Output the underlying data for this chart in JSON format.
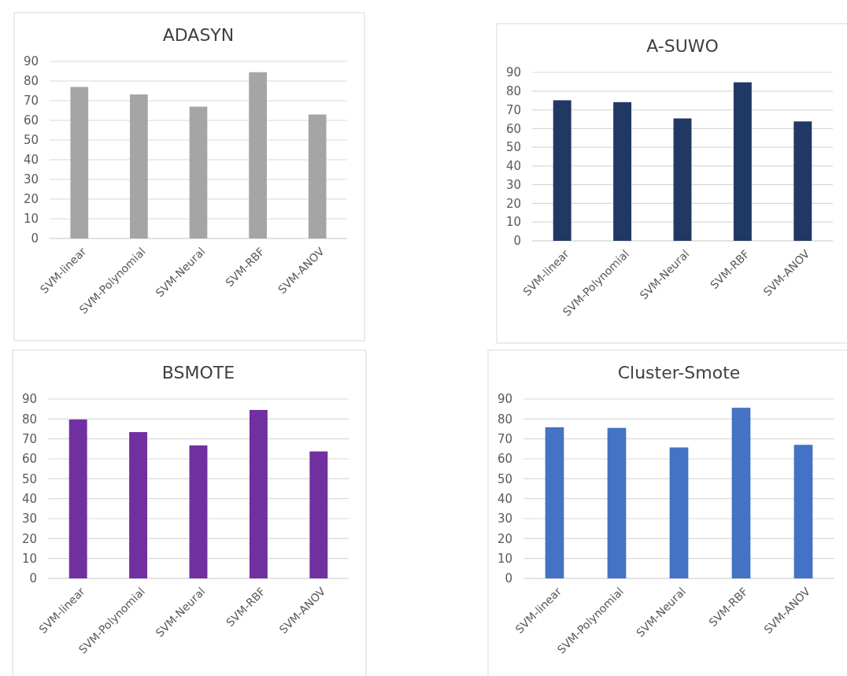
{
  "chart_data": [
    {
      "type": "bar",
      "title": "ADASYN",
      "categories": [
        "SVM-linear",
        "SVM-Polynomial",
        "SVM-Neural",
        "SVM-RBF",
        "SVM-ANOV"
      ],
      "values": [
        77,
        73.2,
        67,
        84.5,
        63
      ],
      "color": "#a5a5a5",
      "ylim": [
        0,
        90
      ],
      "yticks": [
        0,
        10,
        20,
        30,
        40,
        50,
        60,
        70,
        80,
        90
      ],
      "grid": "y"
    },
    {
      "type": "bar",
      "title": "A-SUWO",
      "categories": [
        "SVM-linear",
        "SVM-Polynomial",
        "SVM-Neural",
        "SVM-RBF",
        "SVM-ANOV"
      ],
      "values": [
        75.1,
        74.1,
        65.4,
        84.7,
        63.8
      ],
      "color": "#203864",
      "ylim": [
        0,
        90
      ],
      "yticks": [
        0,
        10,
        20,
        30,
        40,
        50,
        60,
        70,
        80,
        90
      ],
      "grid": "y"
    },
    {
      "type": "bar",
      "title": "BSMOTE",
      "categories": [
        "SVM-linear",
        "SVM-Polynomial",
        "SVM-Neural",
        "SVM-RBF",
        "SVM-ANOV"
      ],
      "values": [
        79.7,
        73.4,
        66.7,
        84.5,
        63.7
      ],
      "color": "#7030a0",
      "ylim": [
        0,
        90
      ],
      "yticks": [
        0,
        10,
        20,
        30,
        40,
        50,
        60,
        70,
        80,
        90
      ],
      "grid": "y"
    },
    {
      "type": "bar",
      "title": "Cluster-Smote",
      "categories": [
        "SVM-linear",
        "SVM-Polynomial",
        "SVM-Neural",
        "SVM-RBF",
        "SVM-ANOV"
      ],
      "values": [
        75.8,
        75.5,
        65.7,
        85.6,
        67
      ],
      "color": "#4472c4",
      "ylim": [
        0,
        90
      ],
      "yticks": [
        0,
        10,
        20,
        30,
        40,
        50,
        60,
        70,
        80,
        90
      ],
      "grid": "y"
    }
  ]
}
